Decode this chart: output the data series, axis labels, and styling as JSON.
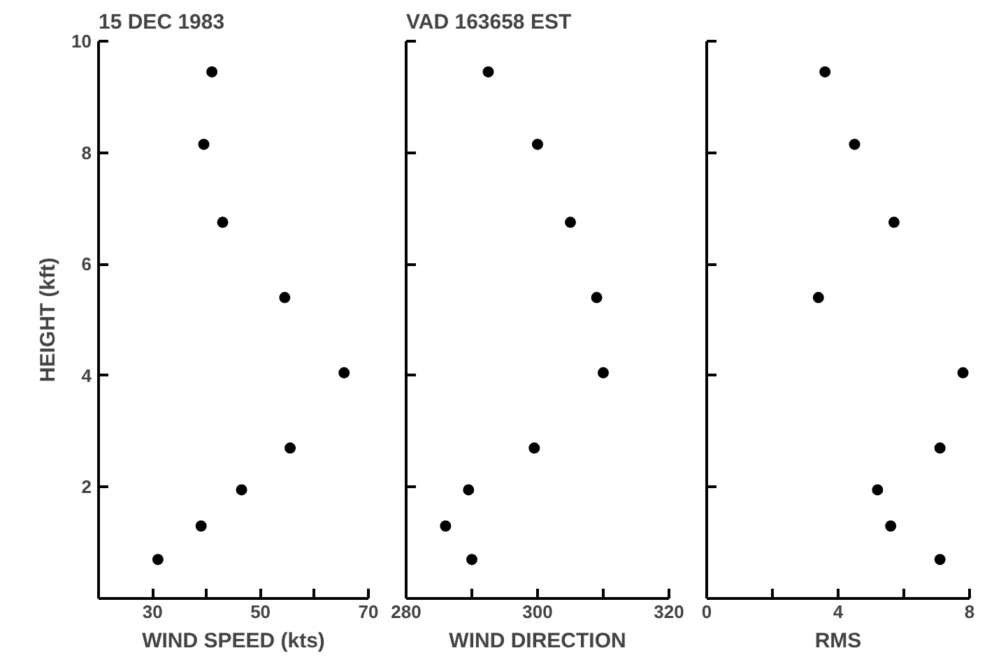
{
  "chart_data": [
    {
      "type": "scatter",
      "title": "15 DEC 1983",
      "xlabel": "WIND SPEED (kts)",
      "ylabel": "HEIGHT (kft)",
      "marker": "circle",
      "xlim": [
        20,
        70
      ],
      "xticks": [
        30,
        {
          "value": 40,
          "label": null
        },
        50,
        {
          "value": 60,
          "label": null
        },
        70
      ],
      "ylim": [
        0,
        10
      ],
      "yticks": [
        2,
        4,
        6,
        8,
        10
      ],
      "series": [
        {
          "color": "#000000",
          "x": [
            41,
            39.5,
            43,
            54.5,
            65.5,
            55.5,
            46.5,
            39,
            31
          ],
          "values": [
            9.45,
            8.15,
            6.75,
            5.4,
            4.05,
            2.7,
            1.95,
            1.3,
            0.7
          ]
        }
      ]
    },
    {
      "type": "scatter",
      "title": "VAD 163658 EST",
      "xlabel": "WIND DIRECTION",
      "marker": "circle",
      "tick_labels": "x",
      "xlim": [
        280,
        320
      ],
      "xticks": [
        280,
        {
          "value": 290,
          "label": null
        },
        300,
        {
          "value": 310,
          "label": null
        },
        320
      ],
      "ylim": [
        0,
        10
      ],
      "yticks": [
        2,
        4,
        6,
        8,
        10
      ],
      "series": [
        {
          "color": "#000000",
          "x": [
            292.5,
            300,
            305,
            309,
            310,
            299.5,
            289.5,
            286,
            290
          ],
          "values": [
            9.45,
            8.15,
            6.75,
            5.4,
            4.05,
            2.7,
            1.95,
            1.3,
            0.7
          ]
        }
      ]
    },
    {
      "type": "scatter",
      "xlabel": "RMS",
      "marker": "circle",
      "tick_labels": "x",
      "xlim": [
        0,
        8
      ],
      "xticks": [
        0,
        {
          "value": 2,
          "label": null
        },
        4,
        {
          "value": 6,
          "label": null
        },
        8
      ],
      "ylim": [
        0,
        10
      ],
      "yticks": [
        2,
        4,
        6,
        8,
        10
      ],
      "series": [
        {
          "color": "#000000",
          "x": [
            3.6,
            4.5,
            5.7,
            3.4,
            7.8,
            7.1,
            5.2,
            5.6,
            7.1
          ],
          "values": [
            9.45,
            8.15,
            6.75,
            5.4,
            4.05,
            2.7,
            1.95,
            1.3,
            0.7
          ]
        }
      ]
    }
  ]
}
